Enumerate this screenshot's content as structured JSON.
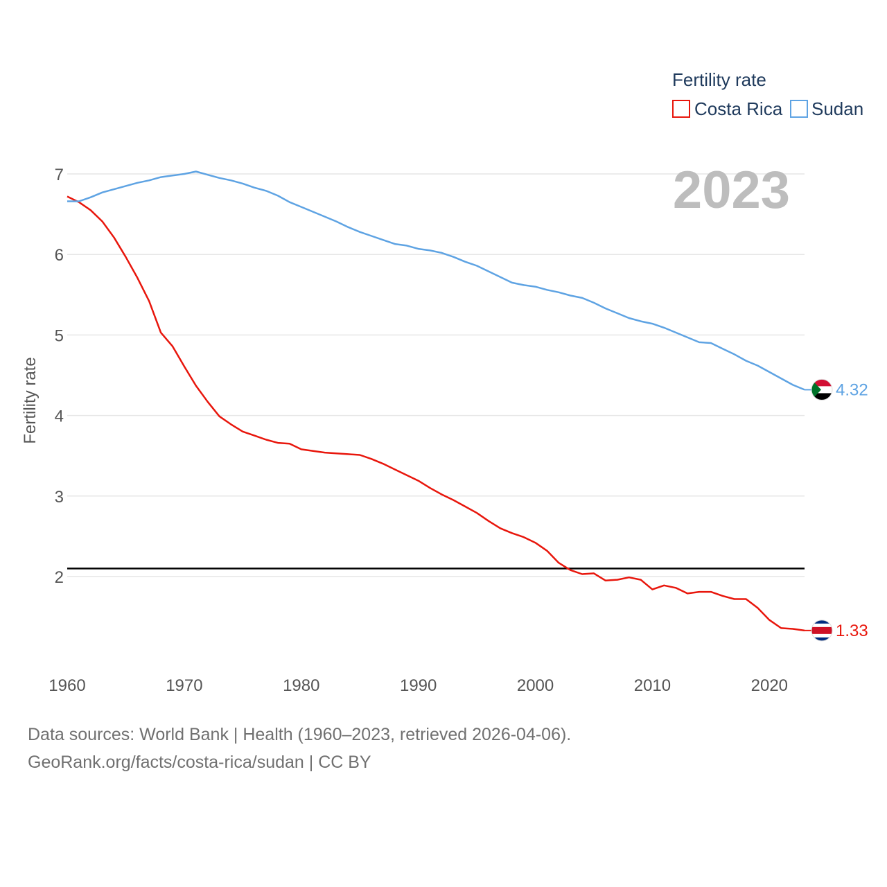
{
  "chart_data": {
    "type": "line",
    "ylabel": "Fertility rate",
    "xlim": [
      1960,
      2023
    ],
    "ylim": [
      1,
      7.3
    ],
    "x_ticks": [
      "1960",
      "1970",
      "1980",
      "1990",
      "2000",
      "2010",
      "2020"
    ],
    "y_ticks": [
      "2",
      "3",
      "4",
      "5",
      "6",
      "7"
    ],
    "reference_line": 2.1,
    "year_label": "2023",
    "legend": {
      "title": "Fertility rate",
      "position": "top-right",
      "entries": [
        "Costa Rica",
        "Sudan"
      ]
    },
    "x": [
      1960,
      1961,
      1962,
      1963,
      1964,
      1965,
      1966,
      1967,
      1968,
      1969,
      1970,
      1971,
      1972,
      1973,
      1974,
      1975,
      1976,
      1977,
      1978,
      1979,
      1980,
      1981,
      1982,
      1983,
      1984,
      1985,
      1986,
      1987,
      1988,
      1989,
      1990,
      1991,
      1992,
      1993,
      1994,
      1995,
      1996,
      1997,
      1998,
      1999,
      2000,
      2001,
      2002,
      2003,
      2004,
      2005,
      2006,
      2007,
      2008,
      2009,
      2010,
      2011,
      2012,
      2013,
      2014,
      2015,
      2016,
      2017,
      2018,
      2019,
      2020,
      2021,
      2022,
      2023
    ],
    "series": [
      {
        "name": "Costa Rica",
        "color": "#e8160c",
        "end_label": "1.33",
        "values": [
          6.72,
          6.65,
          6.55,
          6.41,
          6.21,
          5.97,
          5.71,
          5.42,
          5.03,
          4.86,
          4.61,
          4.37,
          4.17,
          3.99,
          3.89,
          3.8,
          3.75,
          3.7,
          3.66,
          3.65,
          3.58,
          3.56,
          3.54,
          3.53,
          3.52,
          3.51,
          3.46,
          3.4,
          3.33,
          3.26,
          3.19,
          3.1,
          3.02,
          2.95,
          2.87,
          2.79,
          2.69,
          2.6,
          2.54,
          2.49,
          2.42,
          2.32,
          2.17,
          2.08,
          2.03,
          2.04,
          1.95,
          1.96,
          1.99,
          1.96,
          1.84,
          1.89,
          1.86,
          1.79,
          1.81,
          1.81,
          1.76,
          1.72,
          1.72,
          1.61,
          1.46,
          1.36,
          1.35,
          1.33
        ]
      },
      {
        "name": "Sudan",
        "color": "#5ea3e3",
        "end_label": "4.32",
        "values": [
          6.66,
          6.66,
          6.71,
          6.77,
          6.81,
          6.85,
          6.89,
          6.92,
          6.96,
          6.98,
          7.0,
          7.03,
          6.99,
          6.95,
          6.92,
          6.88,
          6.83,
          6.79,
          6.73,
          6.65,
          6.59,
          6.53,
          6.47,
          6.41,
          6.34,
          6.28,
          6.23,
          6.18,
          6.13,
          6.11,
          6.07,
          6.05,
          6.02,
          5.97,
          5.91,
          5.86,
          5.79,
          5.72,
          5.65,
          5.62,
          5.6,
          5.56,
          5.53,
          5.49,
          5.46,
          5.4,
          5.33,
          5.27,
          5.21,
          5.17,
          5.14,
          5.09,
          5.03,
          4.97,
          4.91,
          4.9,
          4.83,
          4.76,
          4.68,
          4.62,
          4.54,
          4.46,
          4.38,
          4.32
        ]
      }
    ]
  },
  "footer": {
    "line1": "Data sources: World Bank | Health (1960–2023, retrieved 2026-04-06).",
    "line2": "GeoRank.org/facts/costa-rica/sudan | CC BY"
  },
  "flags": {
    "sudan": {
      "top": "#d21034",
      "middle": "#ffffff",
      "bottom": "#000000",
      "triangle": "#007229"
    },
    "costa_rica": {
      "outer": "#002b7f",
      "inner": "#ffffff",
      "center": "#ce1126"
    }
  }
}
